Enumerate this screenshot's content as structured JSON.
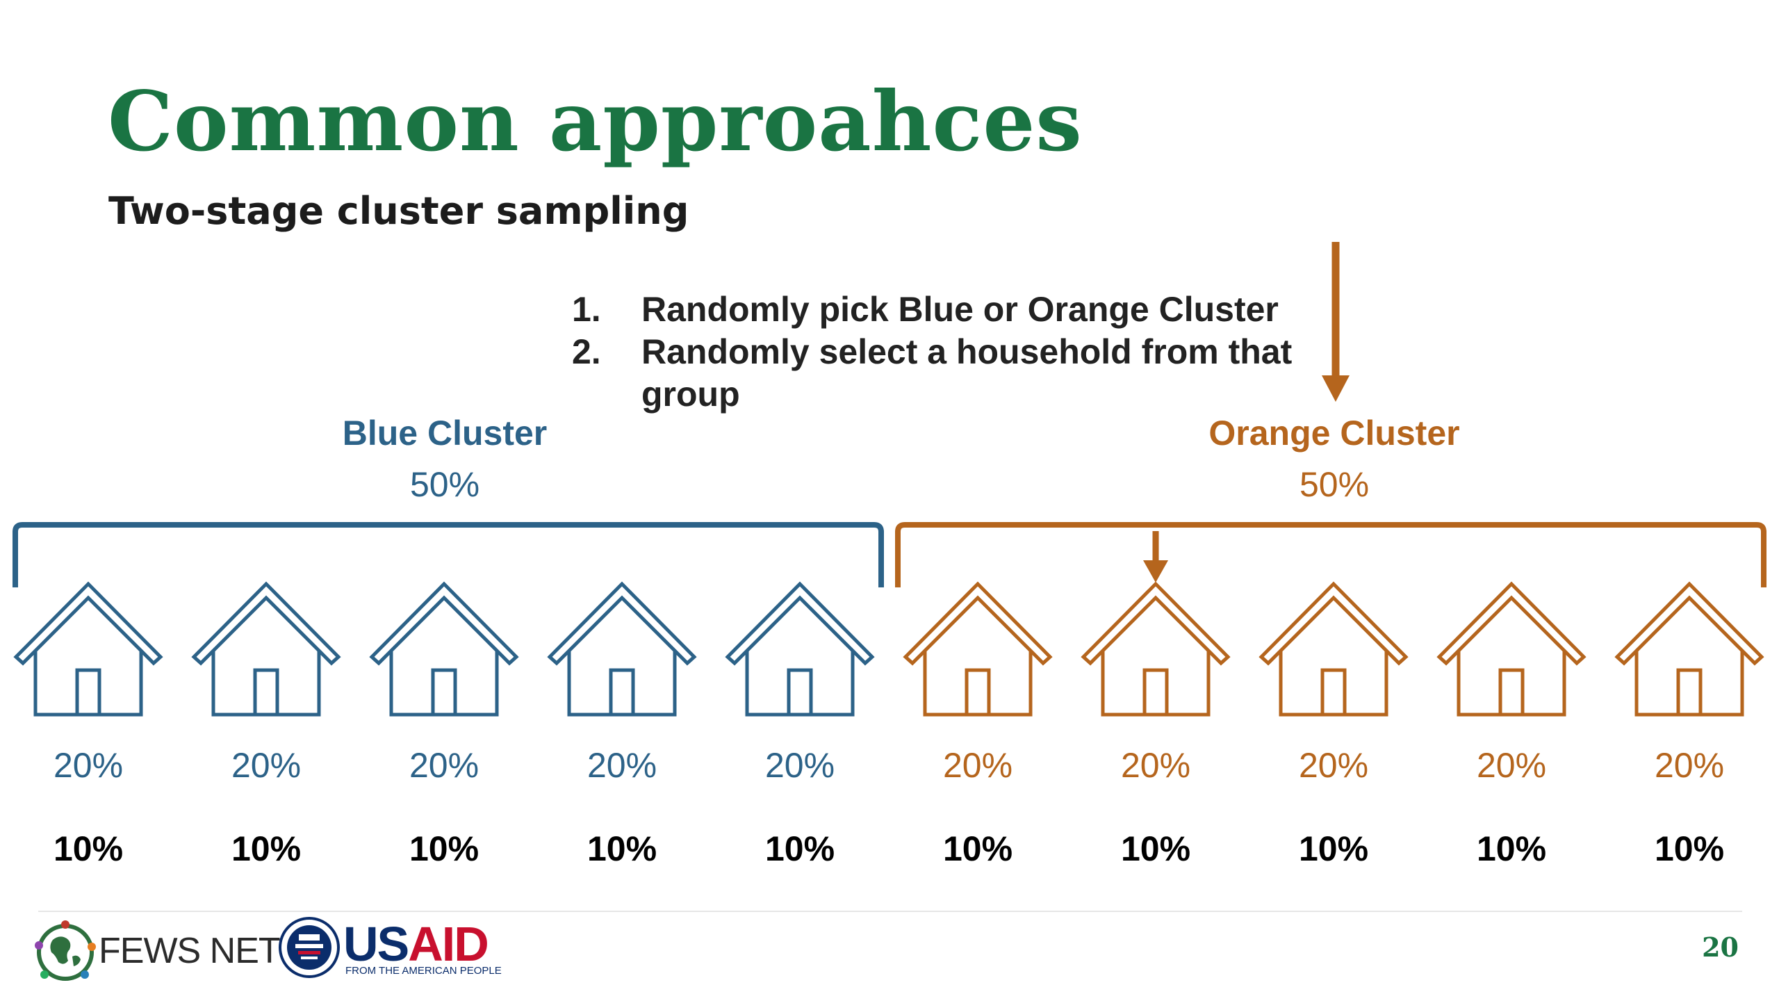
{
  "slide": {
    "title": "Common approahces",
    "subtitle": "Two-stage cluster sampling",
    "steps": [
      {
        "number": "1.",
        "text": "Randomly pick Blue or Orange Cluster"
      },
      {
        "number": "2.",
        "text": "Randomly select a household from that group"
      }
    ],
    "clusters": [
      {
        "label": "Blue Cluster",
        "percent": "50%",
        "color": "#2c6288"
      },
      {
        "label": "Orange Cluster",
        "percent": "50%",
        "color": "#b5651d"
      }
    ],
    "houses": [
      {
        "cluster": "blue",
        "within_cluster": "20%",
        "overall": "10%"
      },
      {
        "cluster": "blue",
        "within_cluster": "20%",
        "overall": "10%"
      },
      {
        "cluster": "blue",
        "within_cluster": "20%",
        "overall": "10%"
      },
      {
        "cluster": "blue",
        "within_cluster": "20%",
        "overall": "10%"
      },
      {
        "cluster": "blue",
        "within_cluster": "20%",
        "overall": "10%"
      },
      {
        "cluster": "orange",
        "within_cluster": "20%",
        "overall": "10%"
      },
      {
        "cluster": "orange",
        "within_cluster": "20%",
        "overall": "10%"
      },
      {
        "cluster": "orange",
        "within_cluster": "20%",
        "overall": "10%"
      },
      {
        "cluster": "orange",
        "within_cluster": "20%",
        "overall": "10%"
      },
      {
        "cluster": "orange",
        "within_cluster": "20%",
        "overall": "10%"
      }
    ],
    "selected_cluster": "orange",
    "selected_house": 7,
    "footer": {
      "fews_logo_text": "FEWS NET",
      "usaid_logo_text": "USAID",
      "usaid_tagline": "FROM THE AMERICAN PEOPLE",
      "page_number": "20"
    },
    "colors": {
      "title": "#1a7443",
      "blue": "#2c6288",
      "orange": "#b5651d"
    },
    "icons": {
      "house": "house-outline-icon",
      "arrow": "down-arrow-icon"
    }
  }
}
